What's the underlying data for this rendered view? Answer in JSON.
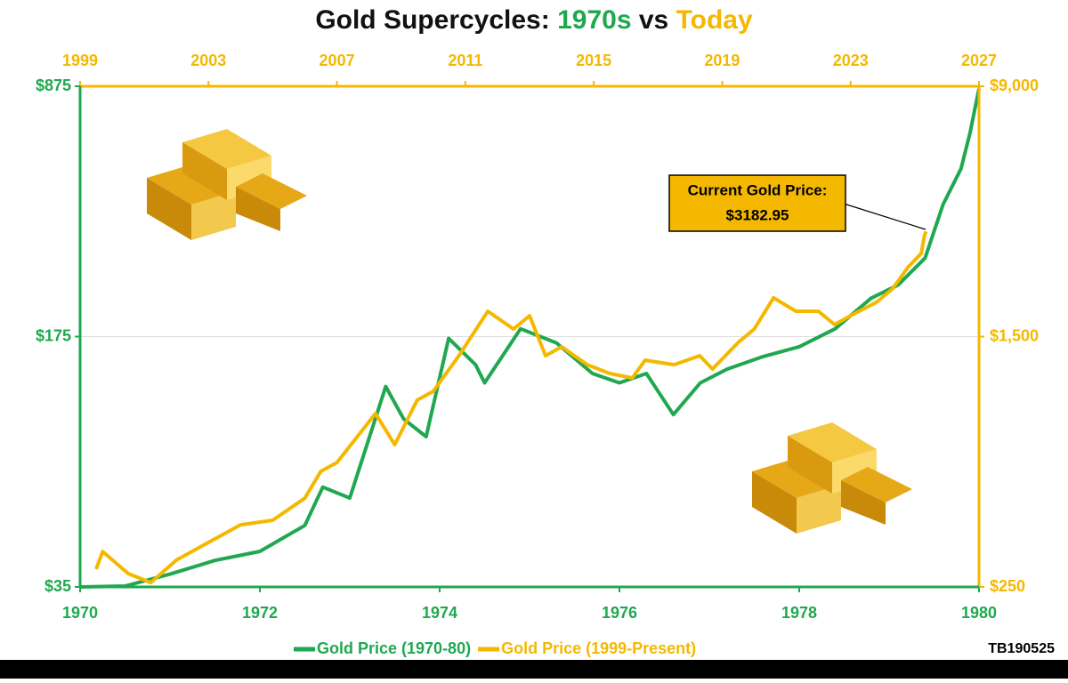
{
  "chart_data": {
    "type": "line",
    "title_parts": [
      "Gold Supercycles: ",
      "1970s",
      " vs ",
      "Today"
    ],
    "log_y": true,
    "xlim": [
      1970,
      1980
    ],
    "xticks": [
      1970,
      1972,
      1974,
      1976,
      1978,
      1980
    ],
    "x2lim": [
      1999,
      2027
    ],
    "x2ticks": [
      1999,
      2003,
      2007,
      2011,
      2015,
      2019,
      2023,
      2027
    ],
    "ylim": [
      35,
      875
    ],
    "yticks": [
      {
        "value": 35,
        "label": "$35"
      },
      {
        "value": 175,
        "label": "$175"
      },
      {
        "value": 875,
        "label": "$875"
      }
    ],
    "y2lim": [
      250,
      9000
    ],
    "y2ticks": [
      {
        "value": 250,
        "label": "$250"
      },
      {
        "value": 1500,
        "label": "$1,500"
      },
      {
        "value": 9000,
        "label": "$9,000"
      }
    ],
    "grid": true,
    "legend": "bottom",
    "series": [
      {
        "name": "Gold Price (1970-80)",
        "color": "#1fa84f",
        "x": [
          1970.0,
          1970.5,
          1971.0,
          1971.5,
          1972.0,
          1972.5,
          1972.7,
          1973.0,
          1973.4,
          1973.6,
          1973.85,
          1974.1,
          1974.4,
          1974.5,
          1974.9,
          1975.3,
          1975.7,
          1976.0,
          1976.3,
          1976.6,
          1976.9,
          1977.2,
          1977.6,
          1978.0,
          1978.4,
          1978.8,
          1979.1,
          1979.4,
          1979.6,
          1979.8,
          1979.9,
          1980.0
        ],
        "values": [
          35,
          35.2,
          38,
          41.5,
          44,
          52,
          66.5,
          62,
          127,
          103,
          92,
          173,
          146,
          130,
          184,
          168,
          138,
          130,
          138,
          106,
          130,
          142,
          154,
          164,
          184,
          224,
          244,
          290,
          409,
          515,
          648,
          862
        ]
      },
      {
        "name": "Gold Price (1999-Present)",
        "color": "#f5b800",
        "axis": "y2",
        "x": [
          1999.5,
          1999.7,
          2000.5,
          2001.2,
          2002.0,
          2003.0,
          2004.0,
          2005.0,
          2006.0,
          2006.5,
          2007.0,
          2008.2,
          2008.8,
          2009.5,
          2010.0,
          2010.8,
          2011.7,
          2012.5,
          2013.0,
          2013.5,
          2014.0,
          2014.8,
          2015.5,
          2016.2,
          2016.6,
          2017.5,
          2018.3,
          2018.7,
          2019.5,
          2020.0,
          2020.6,
          2021.3,
          2022.0,
          2022.5,
          2023.0,
          2023.8,
          2024.3,
          2024.8,
          2025.2,
          2025.3,
          2025.35
        ],
        "values": [
          284,
          322,
          275,
          258,
          303,
          344,
          390,
          403,
          472,
          572,
          609,
          865,
          692,
          952,
          1014,
          1308,
          1798,
          1583,
          1742,
          1308,
          1395,
          1227,
          1152,
          1116,
          1267,
          1227,
          1308,
          1189,
          1439,
          1583,
          1980,
          1798,
          1798,
          1635,
          1742,
          1917,
          2108,
          2472,
          2720,
          3092,
          3182.95
        ]
      }
    ],
    "annotation": [
      "Current Gold Price:",
      "$3182.95"
    ],
    "footer": "TB190525"
  }
}
